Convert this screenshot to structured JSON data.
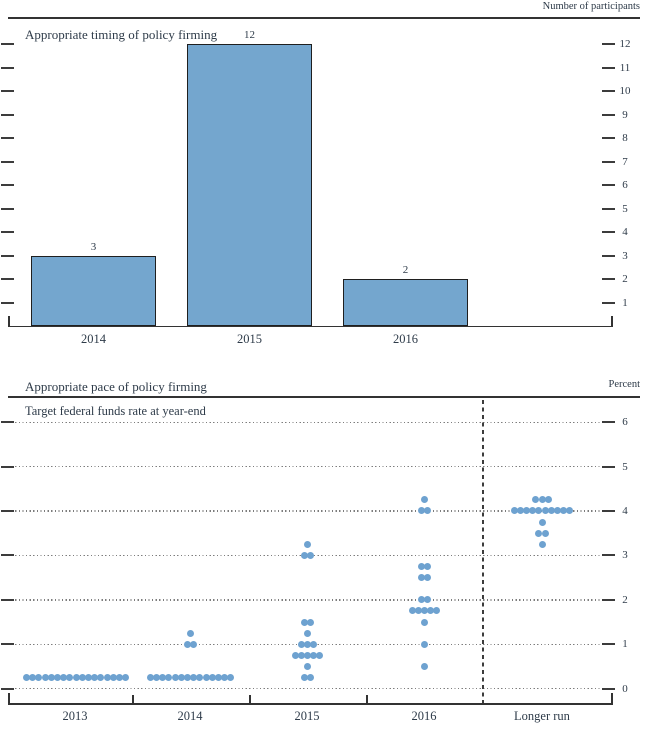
{
  "figure": {
    "background": "#ffffff"
  },
  "colors": {
    "bar_fill": "#74a6ce",
    "bar_border": "#1f1f1f",
    "dot_fill": "#6ea2d0",
    "text": "#2e3b49",
    "axis": "#333333",
    "grid": "#7d7d7d"
  },
  "chart_data": [
    {
      "type": "bar",
      "title": "Appropriate timing of policy firming",
      "unit_label": "Number of participants",
      "categories": [
        "2014",
        "2015",
        "2016"
      ],
      "values": [
        3,
        12,
        2
      ],
      "value_labels": [
        "3",
        "12",
        "2"
      ],
      "xlabel": "",
      "ylabel": "Number of participants",
      "ylim": [
        0,
        12
      ],
      "yticks": [
        1,
        2,
        3,
        4,
        5,
        6,
        7,
        8,
        9,
        10,
        11,
        12
      ],
      "ytick_side": "right",
      "grid": false,
      "legend": "none"
    },
    {
      "type": "scatter",
      "title": "Appropriate pace of policy firming",
      "subtitle": "Target federal funds rate at year-end",
      "unit_label": "Percent",
      "categories": [
        "2013",
        "2014",
        "2015",
        "2016",
        "Longer run"
      ],
      "xlabel": "",
      "ylabel": "Percent",
      "ylim": [
        0,
        6
      ],
      "yticks": [
        0,
        1,
        2,
        3,
        4,
        5,
        6
      ],
      "ytick_side": "right",
      "grid": "dotted-horizontal",
      "legend": "none",
      "separator_before_category": "Longer run",
      "participants_per_column": 17,
      "series": [
        {
          "name": "2013",
          "dots": [
            {
              "rate": 0.25,
              "count": 17
            }
          ]
        },
        {
          "name": "2014",
          "dots": [
            {
              "rate": 1.25,
              "count": 1
            },
            {
              "rate": 1.0,
              "count": 2
            },
            {
              "rate": 0.25,
              "count": 14
            }
          ]
        },
        {
          "name": "2015",
          "dots": [
            {
              "rate": 3.25,
              "count": 1
            },
            {
              "rate": 3.0,
              "count": 2
            },
            {
              "rate": 1.5,
              "count": 2
            },
            {
              "rate": 1.25,
              "count": 1
            },
            {
              "rate": 1.0,
              "count": 3
            },
            {
              "rate": 0.75,
              "count": 5
            },
            {
              "rate": 0.5,
              "count": 1
            },
            {
              "rate": 0.25,
              "count": 2
            }
          ]
        },
        {
          "name": "2016",
          "dots": [
            {
              "rate": 4.25,
              "count": 1
            },
            {
              "rate": 4.0,
              "count": 2
            },
            {
              "rate": 2.75,
              "count": 2
            },
            {
              "rate": 2.5,
              "count": 2
            },
            {
              "rate": 2.0,
              "count": 2
            },
            {
              "rate": 1.75,
              "count": 5
            },
            {
              "rate": 1.5,
              "count": 1
            },
            {
              "rate": 1.0,
              "count": 1
            },
            {
              "rate": 0.5,
              "count": 1
            }
          ]
        },
        {
          "name": "Longer run",
          "dots": [
            {
              "rate": 4.25,
              "count": 3
            },
            {
              "rate": 4.0,
              "count": 10
            },
            {
              "rate": 3.75,
              "count": 1
            },
            {
              "rate": 3.5,
              "count": 2
            },
            {
              "rate": 3.25,
              "count": 1
            }
          ]
        }
      ]
    }
  ]
}
